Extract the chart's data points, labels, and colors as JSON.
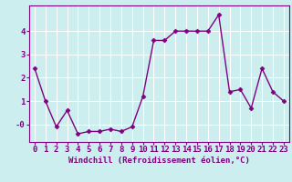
{
  "x": [
    0,
    1,
    2,
    3,
    4,
    5,
    6,
    7,
    8,
    9,
    10,
    11,
    12,
    13,
    14,
    15,
    16,
    17,
    18,
    19,
    20,
    21,
    22,
    23
  ],
  "y": [
    2.4,
    1.0,
    -0.1,
    0.6,
    -0.4,
    -0.3,
    -0.3,
    -0.2,
    -0.3,
    -0.1,
    1.2,
    3.6,
    3.6,
    4.0,
    4.0,
    4.0,
    4.0,
    4.7,
    1.4,
    1.5,
    0.7,
    2.4,
    1.4,
    1.0
  ],
  "line_color": "#800080",
  "marker": "D",
  "marker_size": 2.5,
  "line_width": 1.0,
  "xlabel": "Windchill (Refroidissement éolien,°C)",
  "xlim": [
    -0.5,
    23.5
  ],
  "ylim": [
    -0.75,
    5.1
  ],
  "bg_color": "#cceeee",
  "grid_color": "#ffffff",
  "xlabel_color": "#800080",
  "xlabel_fontsize": 6.5,
  "tick_fontsize": 6.5,
  "tick_color": "#800080"
}
